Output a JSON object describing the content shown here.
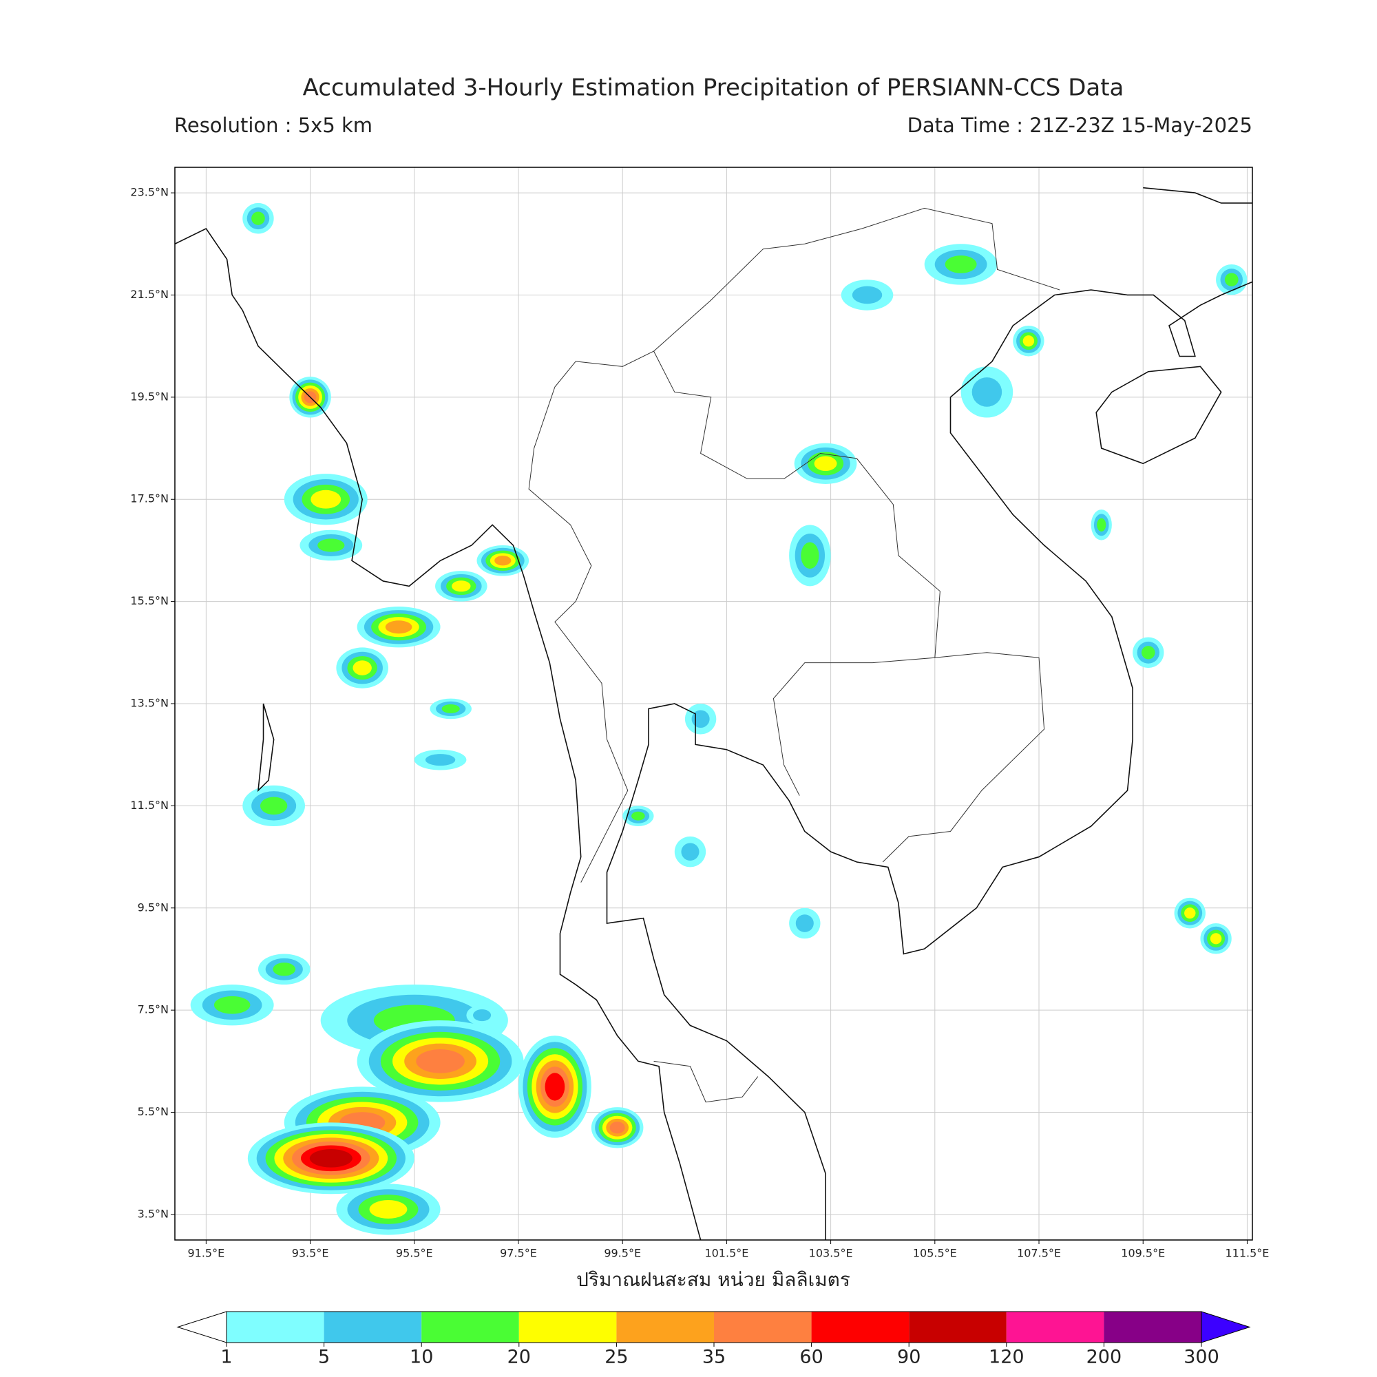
{
  "title": "Accumulated 3-Hourly Estimation Precipitation of PERSIANN-CCS Data",
  "resolution": "Resolution : 5x5 km",
  "data_time": "Data Time : 21Z-23Z 15-May-2025",
  "map": {
    "lonlim": [
      90.9,
      111.6
    ],
    "latlim": [
      3.0,
      24.0
    ],
    "lonticks": [
      {
        "value": 91.5,
        "label": "91.5°E"
      },
      {
        "value": 93.5,
        "label": "93.5°E"
      },
      {
        "value": 95.5,
        "label": "95.5°E"
      },
      {
        "value": 97.5,
        "label": "97.5°E"
      },
      {
        "value": 99.5,
        "label": "99.5°E"
      },
      {
        "value": 101.5,
        "label": "101.5°E"
      },
      {
        "value": 103.5,
        "label": "103.5°E"
      },
      {
        "value": 105.5,
        "label": "105.5°E"
      },
      {
        "value": 107.5,
        "label": "107.5°E"
      },
      {
        "value": 109.5,
        "label": "109.5°E"
      },
      {
        "value": 111.5,
        "label": "111.5°E"
      }
    ],
    "latticks": [
      {
        "value": 3.5,
        "label": "3.5°N"
      },
      {
        "value": 5.5,
        "label": "5.5°N"
      },
      {
        "value": 7.5,
        "label": "7.5°N"
      },
      {
        "value": 9.5,
        "label": "9.5°N"
      },
      {
        "value": 11.5,
        "label": "11.5°N"
      },
      {
        "value": 13.5,
        "label": "13.5°N"
      },
      {
        "value": 15.5,
        "label": "15.5°N"
      },
      {
        "value": 17.5,
        "label": "17.5°N"
      },
      {
        "value": 19.5,
        "label": "19.5°N"
      },
      {
        "value": 21.5,
        "label": "21.5°N"
      },
      {
        "value": 23.5,
        "label": "23.5°N"
      }
    ],
    "xlabel": "ปริมาณฝนสะสม หน่วย มิลลิเมตร",
    "grid": true
  },
  "colorbar": {
    "levels": [
      1,
      5,
      10,
      20,
      25,
      35,
      60,
      90,
      120,
      200,
      300
    ],
    "colors": [
      "#7ffeff",
      "#40c8ec",
      "#4afd34",
      "#fefe00",
      "#fda21d",
      "#fe8040",
      "#fe0000",
      "#c80000",
      "#fe1493",
      "#870087"
    ],
    "under_color": "#ffffff",
    "over_color": "#3c00ff"
  }
}
